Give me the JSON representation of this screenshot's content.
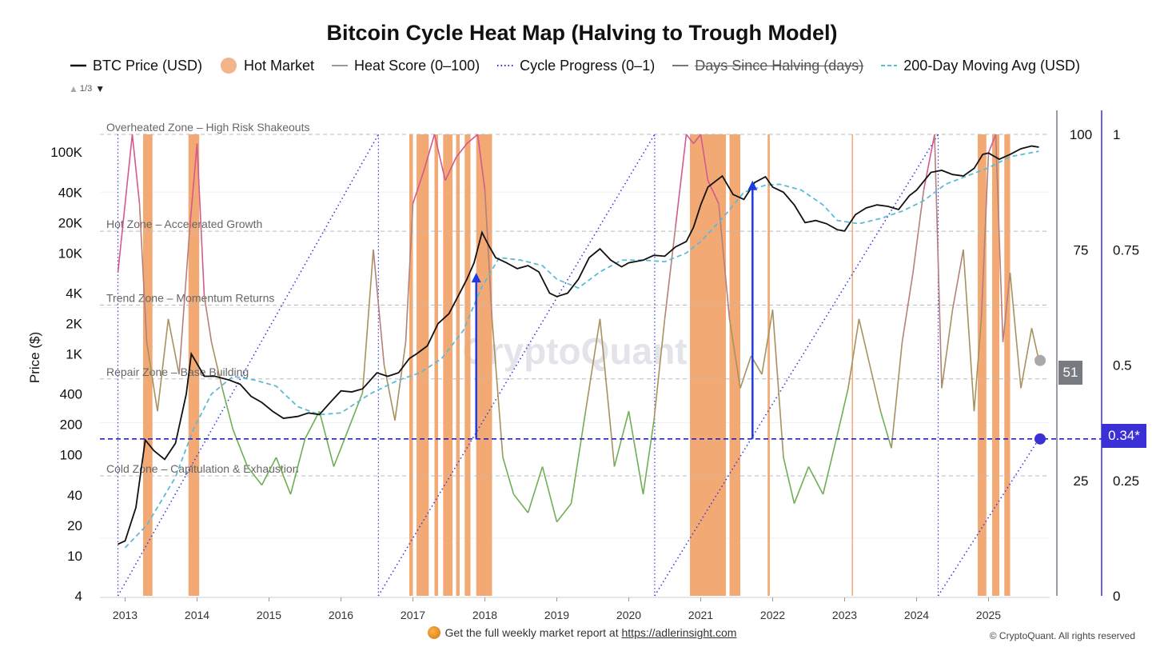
{
  "title": "Bitcoin Cycle Heat Map (Halving to Trough Model)",
  "legend": [
    {
      "label": "BTC Price (USD)",
      "kind": "line",
      "color": "#111111"
    },
    {
      "label": "Hot Market",
      "kind": "dot",
      "color": "#f2b48a"
    },
    {
      "label": "Heat Score (0–100)",
      "kind": "line",
      "color": "#999999"
    },
    {
      "label": "Cycle Progress (0–1)",
      "kind": "dotted",
      "color": "#2a2ad8"
    },
    {
      "label": "Days Since Halving (days)",
      "kind": "line",
      "color": "#777777",
      "hidden": true
    },
    {
      "label": "200-Day Moving Avg (USD)",
      "kind": "dashed",
      "color": "#5bbcd8"
    }
  ],
  "pager": {
    "text": "1/3"
  },
  "footer": {
    "text": "Get the full weekly market report at ",
    "link": "https://adlerinsight.com"
  },
  "copyright": "© CryptoQuant. All rights reserved",
  "watermark": "CryptoQuant",
  "badges": {
    "heat": "51",
    "cycle": "0.34*"
  },
  "chart_data": {
    "type": "line",
    "y_axis_label": "Price ($)",
    "price_scale": "log",
    "price_ticks": [
      "100K",
      "40K",
      "20K",
      "10K",
      "4K",
      "2K",
      "1K",
      "400",
      "200",
      "100",
      "40",
      "20",
      "10",
      "4"
    ],
    "price_tick_values": [
      100000,
      40000,
      20000,
      10000,
      4000,
      2000,
      1000,
      400,
      200,
      100,
      40,
      20,
      10,
      4
    ],
    "heat_ticks": [
      "100",
      "75",
      "25"
    ],
    "heat_tick_values": [
      100,
      75,
      25
    ],
    "cycle_ticks": [
      "1",
      "0.75",
      "0.5",
      "0.25",
      "0"
    ],
    "cycle_tick_values": [
      1,
      0.75,
      0.5,
      0.25,
      0
    ],
    "x_ticks": [
      "2013",
      "2014",
      "2015",
      "2016",
      "2017",
      "2018",
      "2019",
      "2020",
      "2021",
      "2022",
      "2023",
      "2024",
      "2025"
    ],
    "x_tick_values": [
      2013,
      2014,
      2015,
      2016,
      2017,
      2018,
      2019,
      2020,
      2021,
      2022,
      2023,
      2024,
      2025
    ],
    "zones": [
      {
        "label": "Overheated Zone – High Risk Shakeouts",
        "heat": 100
      },
      {
        "label": "Hot Zone – Accelerated Growth",
        "heat": 79
      },
      {
        "label": "Trend Zone – Momentum Returns",
        "heat": 63
      },
      {
        "label": "Repair Zone – Base Building",
        "heat": 47
      },
      {
        "label": "Cold Zone – Capitulation & Exhaustion",
        "heat": 26
      }
    ],
    "halvings": [
      2012.9,
      2016.52,
      2020.36,
      2024.3
    ],
    "cycle_current": 0.34,
    "heat_current": 51,
    "btc_price": {
      "x": [
        2012.9,
        2013.0,
        2013.15,
        2013.28,
        2013.4,
        2013.55,
        2013.7,
        2013.85,
        2013.92,
        2014.0,
        2014.1,
        2014.25,
        2014.45,
        2014.6,
        2014.75,
        2014.9,
        2015.05,
        2015.2,
        2015.4,
        2015.55,
        2015.7,
        2015.85,
        2016.0,
        2016.15,
        2016.3,
        2016.5,
        2016.65,
        2016.8,
        2016.95,
        2017.05,
        2017.2,
        2017.35,
        2017.5,
        2017.65,
        2017.75,
        2017.85,
        2017.96,
        2018.05,
        2018.15,
        2018.3,
        2018.45,
        2018.6,
        2018.75,
        2018.9,
        2019.0,
        2019.15,
        2019.3,
        2019.45,
        2019.6,
        2019.75,
        2019.9,
        2020.0,
        2020.2,
        2020.35,
        2020.5,
        2020.65,
        2020.8,
        2020.9,
        2021.0,
        2021.1,
        2021.3,
        2021.45,
        2021.6,
        2021.75,
        2021.9,
        2022.0,
        2022.15,
        2022.3,
        2022.45,
        2022.6,
        2022.75,
        2022.9,
        2023.0,
        2023.15,
        2023.3,
        2023.45,
        2023.6,
        2023.75,
        2023.9,
        2024.0,
        2024.2,
        2024.35,
        2024.5,
        2024.65,
        2024.8,
        2024.92,
        2025.0,
        2025.15,
        2025.3,
        2025.45,
        2025.6,
        2025.7
      ],
      "y": [
        13,
        14,
        30,
        140,
        110,
        90,
        130,
        400,
        1000,
        800,
        600,
        600,
        550,
        500,
        380,
        330,
        270,
        230,
        240,
        260,
        250,
        330,
        430,
        420,
        450,
        650,
        600,
        650,
        900,
        1000,
        1200,
        2000,
        2500,
        4000,
        5500,
        8000,
        16000,
        12000,
        9000,
        8000,
        7000,
        7500,
        6500,
        4000,
        3700,
        4000,
        5500,
        9000,
        11000,
        8500,
        7300,
        8000,
        8500,
        9500,
        9300,
        11500,
        13000,
        18000,
        30000,
        45000,
        58000,
        38000,
        34000,
        50000,
        57000,
        45000,
        40000,
        30000,
        20000,
        21000,
        19500,
        17000,
        16500,
        24000,
        28000,
        30000,
        29000,
        27000,
        37000,
        42000,
        63000,
        66000,
        60000,
        58000,
        69000,
        95000,
        98000,
        85000,
        95000,
        108000,
        115000,
        112000
      ]
    },
    "ma200": {
      "x": [
        2013.0,
        2013.3,
        2013.7,
        2013.95,
        2014.2,
        2014.5,
        2014.8,
        2015.1,
        2015.4,
        2015.7,
        2016.0,
        2016.4,
        2016.8,
        2017.1,
        2017.4,
        2017.7,
        2017.95,
        2018.2,
        2018.5,
        2018.8,
        2019.0,
        2019.3,
        2019.6,
        2019.9,
        2020.2,
        2020.5,
        2020.8,
        2021.0,
        2021.3,
        2021.6,
        2021.9,
        2022.1,
        2022.4,
        2022.7,
        2022.9,
        2023.2,
        2023.5,
        2023.8,
        2024.1,
        2024.4,
        2024.7,
        2025.0,
        2025.3,
        2025.7
      ],
      "y": [
        12,
        20,
        60,
        180,
        400,
        600,
        550,
        480,
        300,
        250,
        260,
        400,
        550,
        650,
        900,
        1700,
        4500,
        9000,
        8500,
        7500,
        5500,
        4500,
        6500,
        8500,
        8500,
        8200,
        10000,
        13000,
        22000,
        40000,
        47000,
        48000,
        42000,
        30000,
        21000,
        19500,
        22000,
        26000,
        33000,
        48000,
        58000,
        70000,
        90000,
        102000
      ]
    },
    "heat_score": {
      "x": [
        2012.9,
        2013.1,
        2013.2,
        2013.3,
        2013.45,
        2013.6,
        2013.75,
        2013.9,
        2014.0,
        2014.1,
        2014.2,
        2014.35,
        2014.5,
        2014.7,
        2014.9,
        2015.1,
        2015.3,
        2015.5,
        2015.7,
        2015.9,
        2016.1,
        2016.3,
        2016.45,
        2016.6,
        2016.75,
        2016.9,
        2017.0,
        2017.15,
        2017.3,
        2017.45,
        2017.6,
        2017.75,
        2017.9,
        2018.0,
        2018.1,
        2018.25,
        2018.4,
        2018.6,
        2018.8,
        2019.0,
        2019.2,
        2019.4,
        2019.6,
        2019.8,
        2020.0,
        2020.2,
        2020.35,
        2020.5,
        2020.65,
        2020.8,
        2020.9,
        2021.0,
        2021.1,
        2021.25,
        2021.4,
        2021.55,
        2021.7,
        2021.85,
        2022.0,
        2022.15,
        2022.3,
        2022.5,
        2022.7,
        2022.9,
        2023.05,
        2023.2,
        2023.35,
        2023.5,
        2023.65,
        2023.8,
        2023.95,
        2024.1,
        2024.25,
        2024.35,
        2024.5,
        2024.65,
        2024.8,
        2024.9,
        2025.0,
        2025.1,
        2025.2,
        2025.3,
        2025.45,
        2025.6,
        2025.7
      ],
      "y": [
        70,
        100,
        85,
        55,
        40,
        60,
        48,
        80,
        98,
        65,
        55,
        45,
        36,
        28,
        24,
        30,
        22,
        34,
        40,
        28,
        36,
        44,
        75,
        50,
        38,
        55,
        85,
        92,
        100,
        90,
        95,
        98,
        100,
        88,
        60,
        30,
        22,
        18,
        28,
        16,
        20,
        40,
        60,
        28,
        40,
        22,
        38,
        60,
        80,
        100,
        98,
        100,
        90,
        85,
        60,
        45,
        52,
        48,
        62,
        30,
        20,
        28,
        22,
        35,
        45,
        60,
        50,
        40,
        32,
        55,
        70,
        88,
        100,
        45,
        62,
        75,
        40,
        60,
        96,
        100,
        55,
        70,
        45,
        58,
        51
      ]
    },
    "hot_market_periods": [
      [
        2013.25,
        2013.38
      ],
      [
        2013.88,
        2014.03
      ],
      [
        2016.95,
        2017.0
      ],
      [
        2017.05,
        2017.22
      ],
      [
        2017.3,
        2017.35
      ],
      [
        2017.42,
        2017.55
      ],
      [
        2017.6,
        2017.65
      ],
      [
        2017.72,
        2017.8
      ],
      [
        2017.88,
        2018.1
      ],
      [
        2020.85,
        2021.35
      ],
      [
        2021.4,
        2021.55
      ],
      [
        2021.93,
        2021.96
      ],
      [
        2023.1,
        2023.11
      ],
      [
        2024.85,
        2024.97
      ],
      [
        2025.05,
        2025.15
      ],
      [
        2025.22,
        2025.3
      ]
    ],
    "annotations": [
      {
        "type": "arrow",
        "x": 2017.88,
        "from_cycle": 0.34,
        "to_cycle": 0.7
      },
      {
        "type": "arrow",
        "x": 2021.72,
        "from_cycle": 0.34,
        "to_cycle": 0.9
      }
    ],
    "x_range": [
      2012.65,
      2025.85
    ],
    "price_range": [
      4,
      150000
    ],
    "heat_range": [
      0,
      100
    ],
    "cycle_range": [
      0,
      1
    ]
  }
}
